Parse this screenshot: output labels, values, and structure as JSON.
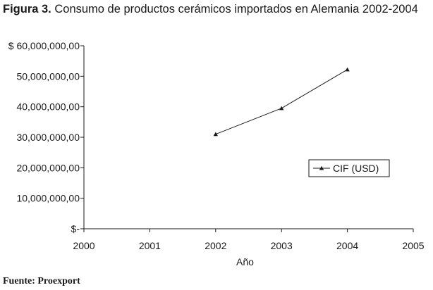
{
  "caption": {
    "figure_label": "Figura 3.",
    "text": "Consumo de productos cerámicos importados en Alemania 2002-2004"
  },
  "source": "Fuente: Proexport",
  "chart_data": {
    "type": "line",
    "title": "",
    "xlabel": "Año",
    "ylabel": "",
    "x": [
      2002,
      2003,
      2004
    ],
    "series": [
      {
        "name": "CIF (USD)",
        "values": [
          31000000,
          39500000,
          52200000
        ],
        "marker": "triangle"
      }
    ],
    "xlim": [
      2000,
      2005
    ],
    "ylim": [
      0,
      60000000
    ],
    "x_ticks": [
      "2000",
      "2001",
      "2002",
      "2003",
      "2004",
      "2005"
    ],
    "y_ticks": [
      {
        "value": 0,
        "label": "$-"
      },
      {
        "value": 10000000,
        "label": "10,000,000,00"
      },
      {
        "value": 20000000,
        "label": "20,000,000,00"
      },
      {
        "value": 30000000,
        "label": "30,000,000,00"
      },
      {
        "value": 40000000,
        "label": "40,000,000,00"
      },
      {
        "value": 50000000,
        "label": "50,000,000,00"
      },
      {
        "value": 60000000,
        "label": "$ 60,000,000,00"
      }
    ],
    "grid": false,
    "legend": "right",
    "line_color": "#1a1a1a"
  }
}
